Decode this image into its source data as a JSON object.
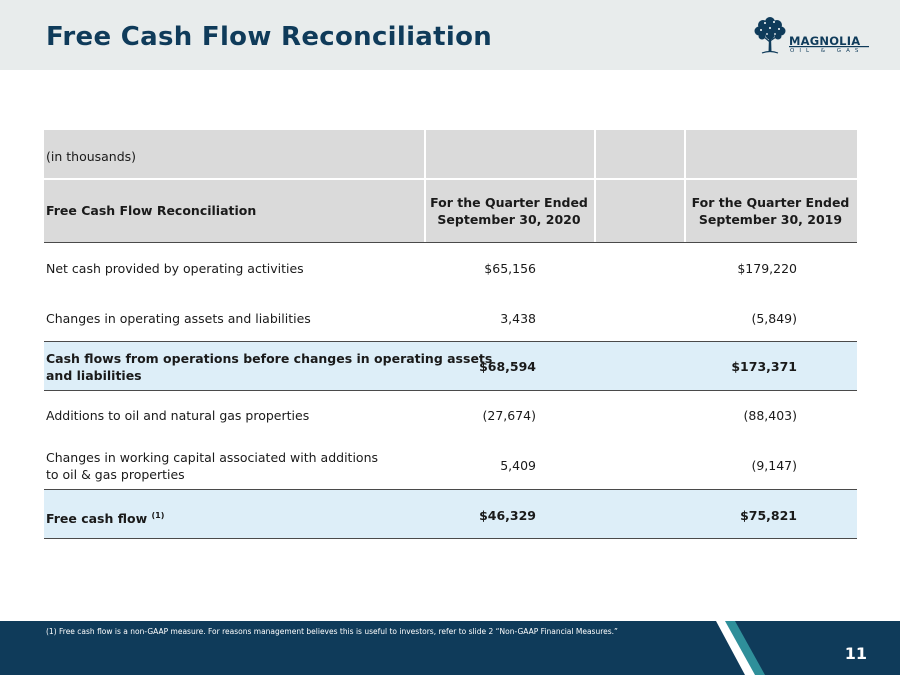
{
  "header": {
    "title": "Free Cash Flow Reconciliation",
    "logo_text": "MAGNOLIA",
    "logo_sub": "OIL & GAS",
    "logo_icon": "tree-icon"
  },
  "table": {
    "units_label": "(in thousands)",
    "header_label": "Free Cash Flow Reconciliation",
    "col1_line1": "For the Quarter Ended",
    "col1_line2": "September 30, 2020",
    "col2_line1": "For the Quarter Ended",
    "col2_line2": "September 30, 2019",
    "rows": [
      {
        "label": "Net cash provided by operating activities",
        "v1": "$65,156",
        "v2": "$179,220"
      },
      {
        "label": "Changes in operating assets and liabilities",
        "v1": "3,438",
        "v2": "(5,849)"
      },
      {
        "label_line1": "Cash flows from operations before changes in operating assets",
        "label_line2": "and liabilities",
        "v1": "$68,594",
        "v2": "$173,371"
      },
      {
        "label": "Additions to oil and natural gas properties",
        "v1": "(27,674)",
        "v2": "(88,403)"
      },
      {
        "label_line1": "Changes in working capital associated with additions",
        "label_line2": "to oil & gas properties",
        "v1": "5,409",
        "v2": "(9,147)"
      },
      {
        "label": "Free cash flow",
        "superscript": "(1)",
        "v1": "$46,329",
        "v2": "$75,821"
      }
    ]
  },
  "footer": {
    "footnote": "(1)   Free cash flow is a non-GAAP measure. For reasons management believes this is useful to investors, refer to slide 2 “Non-GAAP Financial Measures.”",
    "page_number": "11"
  },
  "colors": {
    "navy": "#0f3b5a",
    "teal": "#2f8f9a",
    "header_gray": "#dadada",
    "highlight_blue": "#ddeef8"
  }
}
